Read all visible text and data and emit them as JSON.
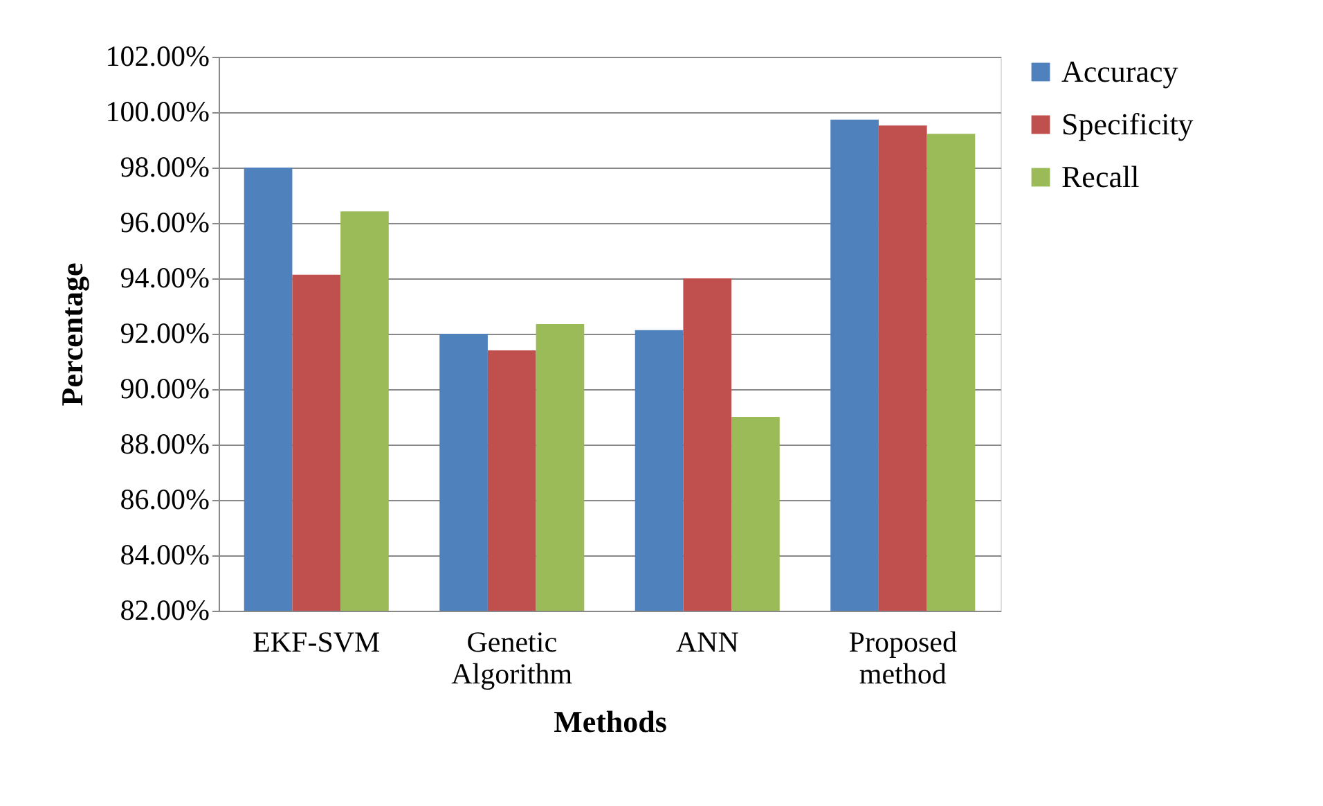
{
  "chart_data": {
    "type": "bar",
    "xlabel": "Methods",
    "ylabel": "Percentage",
    "categories": [
      "EKF-SVM",
      "Genetic Algorithm",
      "ANN",
      "Proposed method"
    ],
    "series": [
      {
        "name": "Accuracy",
        "color": "#4f81bd",
        "values": [
          98.0,
          92.0,
          92.13,
          99.73
        ]
      },
      {
        "name": "Specificity",
        "color": "#c0504d",
        "values": [
          94.13,
          91.4,
          94.0,
          99.52
        ]
      },
      {
        "name": "Recall",
        "color": "#9bbb59",
        "values": [
          96.42,
          92.35,
          89.0,
          99.22
        ]
      }
    ],
    "ylim": [
      82,
      102
    ],
    "yticks": [
      {
        "value": 82,
        "label": "82.00%"
      },
      {
        "value": 84,
        "label": "84.00%"
      },
      {
        "value": 86,
        "label": "86.00%"
      },
      {
        "value": 88,
        "label": "88.00%"
      },
      {
        "value": 90,
        "label": "90.00%"
      },
      {
        "value": 92,
        "label": "92.00%"
      },
      {
        "value": 94,
        "label": "94.00%"
      },
      {
        "value": 96,
        "label": "96.00%"
      },
      {
        "value": 98,
        "label": "98.00%"
      },
      {
        "value": 100,
        "label": "100.00%"
      },
      {
        "value": 102,
        "label": "102.00%"
      }
    ],
    "grid": "y",
    "legend": "right"
  }
}
